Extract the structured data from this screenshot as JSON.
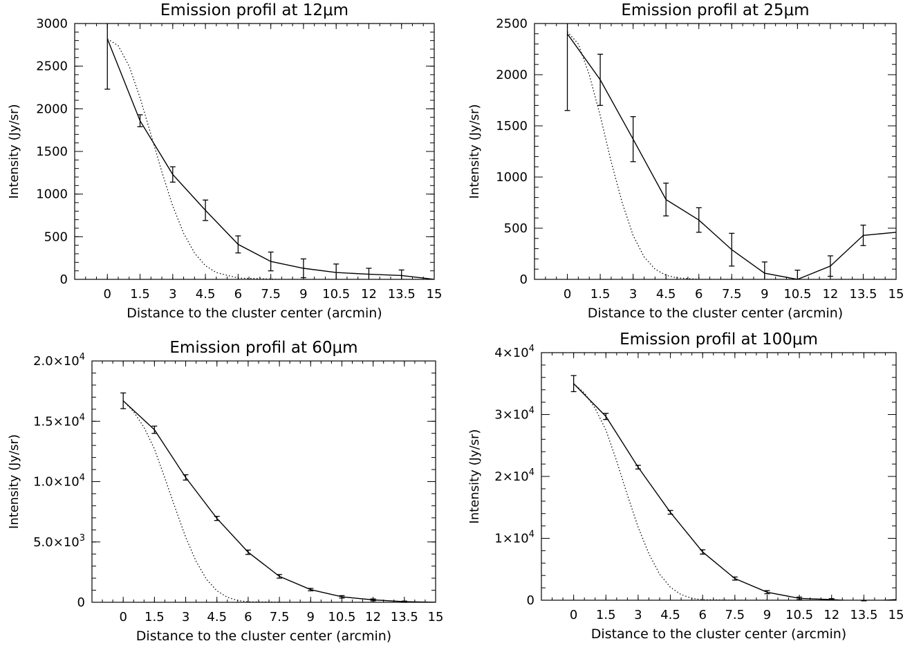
{
  "chart_data": [
    {
      "type": "line",
      "title": "Emission profil at 12",
      "title_unit": "μm",
      "xlabel": "Distance to the cluster center (arcmin)",
      "ylabel": "Intensity (Jy/sr)",
      "xlim": [
        -1.5,
        15
      ],
      "ylim": [
        0,
        3000
      ],
      "xticks": [
        0,
        1.5,
        3,
        4.5,
        6,
        7.5,
        9,
        10.5,
        12,
        13.5,
        15
      ],
      "xtick_labels": [
        "0",
        "1.5",
        "3",
        "4.5",
        "6",
        "7.5",
        "9",
        "10.5",
        "12",
        "13.5",
        "15"
      ],
      "yticks": [
        0,
        500,
        1000,
        1500,
        2000,
        2500,
        3000
      ],
      "ytick_labels": [
        "0",
        "500",
        "1000",
        "1500",
        "2000",
        "2500",
        "3000"
      ],
      "series": [
        {
          "style": "solid-with-errorbars",
          "x": [
            0,
            1.5,
            3,
            4.5,
            6,
            7.5,
            9,
            10.5,
            12,
            13.5,
            15
          ],
          "y": [
            2820,
            1860,
            1230,
            810,
            410,
            210,
            130,
            80,
            60,
            45,
            0
          ],
          "err": [
            590,
            70,
            90,
            120,
            100,
            110,
            110,
            100,
            70,
            65,
            0
          ]
        },
        {
          "style": "dotted-model",
          "x": [
            0,
            0.5,
            1,
            1.5,
            2,
            2.5,
            3,
            3.5,
            4,
            4.5,
            5,
            6,
            8,
            10,
            15
          ],
          "y": [
            2820,
            2740,
            2500,
            2130,
            1700,
            1260,
            860,
            540,
            310,
            160,
            80,
            15,
            0,
            0,
            0
          ]
        }
      ]
    },
    {
      "type": "line",
      "title": "Emission profil at 25",
      "title_unit": "μm",
      "xlabel": "Distance to the cluster center (arcmin)",
      "ylabel": "Intensity (Jy/sr)",
      "xlim": [
        -1.5,
        15
      ],
      "ylim": [
        0,
        2500
      ],
      "xticks": [
        0,
        1.5,
        3,
        4.5,
        6,
        7.5,
        9,
        10.5,
        12,
        13.5,
        15
      ],
      "xtick_labels": [
        "0",
        "1.5",
        "3",
        "4.5",
        "6",
        "7.5",
        "9",
        "10.5",
        "12",
        "13.5",
        "15"
      ],
      "yticks": [
        0,
        500,
        1000,
        1500,
        2000,
        2500
      ],
      "ytick_labels": [
        "0",
        "500",
        "1000",
        "1500",
        "2000",
        "2500"
      ],
      "series": [
        {
          "style": "solid-with-errorbars",
          "x": [
            0,
            1.5,
            3,
            4.5,
            6,
            7.5,
            9,
            10.5,
            12,
            13.5,
            15
          ],
          "y": [
            2400,
            1950,
            1370,
            780,
            580,
            290,
            60,
            0,
            130,
            430,
            460
          ],
          "err": [
            750,
            250,
            220,
            160,
            120,
            160,
            110,
            90,
            100,
            100,
            0
          ]
        },
        {
          "style": "dotted-model",
          "x": [
            0,
            0.5,
            1,
            1.5,
            2,
            2.5,
            3,
            3.5,
            4,
            4.5,
            5,
            6,
            8,
            10,
            15
          ],
          "y": [
            2420,
            2300,
            2000,
            1600,
            1150,
            750,
            430,
            220,
            100,
            40,
            15,
            0,
            0,
            0,
            0
          ]
        }
      ]
    },
    {
      "type": "line",
      "title": "Emission profil at 60",
      "title_unit": "μm",
      "xlabel": "Distance to the cluster center (arcmin)",
      "ylabel": "Intensity (Jy/sr)",
      "xlim": [
        -1.5,
        15
      ],
      "ylim": [
        0,
        20000
      ],
      "xticks": [
        0,
        1.5,
        3,
        4.5,
        6,
        7.5,
        9,
        10.5,
        12,
        13.5,
        15
      ],
      "xtick_labels": [
        "0",
        "1.5",
        "3",
        "4.5",
        "6",
        "7.5",
        "9",
        "10.5",
        "12",
        "13.5",
        "15"
      ],
      "yticks": [
        0,
        5000,
        10000,
        15000,
        20000
      ],
      "ytick_labels": [
        {
          "m": "0",
          "e": ""
        },
        {
          "m": "5.0×10",
          "e": "3"
        },
        {
          "m": "1.0×10",
          "e": "4"
        },
        {
          "m": "1.5×10",
          "e": "4"
        },
        {
          "m": "2.0×10",
          "e": "4"
        }
      ],
      "series": [
        {
          "style": "solid-with-errorbars",
          "x": [
            0,
            1.5,
            3,
            4.5,
            6,
            7.5,
            9,
            10.5,
            12,
            13.5,
            15
          ],
          "y": [
            16700,
            14300,
            10350,
            6950,
            4150,
            2150,
            1050,
            450,
            200,
            50,
            0
          ],
          "err": [
            650,
            300,
            220,
            170,
            180,
            150,
            100,
            100,
            80,
            50,
            0
          ]
        },
        {
          "style": "dotted-model",
          "x": [
            0,
            0.5,
            1,
            1.5,
            2,
            2.5,
            3,
            3.5,
            4,
            4.5,
            5,
            5.5,
            6,
            8,
            10,
            15
          ],
          "y": [
            16700,
            15800,
            14500,
            12700,
            10300,
            7800,
            5400,
            3400,
            1900,
            950,
            420,
            150,
            40,
            0,
            0,
            0
          ]
        }
      ]
    },
    {
      "type": "line",
      "title": "Emission profil at 100",
      "title_unit": "μm",
      "xlabel": "Distance to the cluster center (arcmin)",
      "ylabel": "Intensity (Jy/sr)",
      "xlim": [
        -1.5,
        15
      ],
      "ylim": [
        0,
        40000
      ],
      "xticks": [
        0,
        1.5,
        3,
        4.5,
        6,
        7.5,
        9,
        10.5,
        12,
        13.5,
        15
      ],
      "xtick_labels": [
        "0",
        "1.5",
        "3",
        "4.5",
        "6",
        "7.5",
        "9",
        "10.5",
        "12",
        "13.5",
        "15"
      ],
      "yticks": [
        0,
        10000,
        20000,
        30000,
        40000
      ],
      "ytick_labels": [
        {
          "m": "0",
          "e": ""
        },
        {
          "m": "1×10",
          "e": "4"
        },
        {
          "m": "2×10",
          "e": "4"
        },
        {
          "m": "3×10",
          "e": "4"
        },
        {
          "m": "4×10",
          "e": "4"
        }
      ],
      "series": [
        {
          "style": "solid-with-errorbars",
          "x": [
            0,
            1.5,
            3,
            4.5,
            6,
            7.5,
            9,
            10.5,
            12,
            13.5,
            15
          ],
          "y": [
            35000,
            29700,
            21500,
            14200,
            7800,
            3500,
            1300,
            300,
            100,
            -200,
            100
          ],
          "err": [
            1300,
            500,
            300,
            300,
            350,
            250,
            250,
            200,
            150,
            100,
            0
          ]
        },
        {
          "style": "dotted-model",
          "x": [
            0,
            0.5,
            1,
            1.5,
            2,
            2.5,
            3,
            3.5,
            4,
            4.5,
            5,
            5.5,
            6,
            8,
            10,
            15
          ],
          "y": [
            35000,
            33500,
            31000,
            27500,
            22500,
            17000,
            11800,
            7500,
            4200,
            2100,
            900,
            300,
            80,
            0,
            0,
            0
          ]
        }
      ]
    }
  ]
}
